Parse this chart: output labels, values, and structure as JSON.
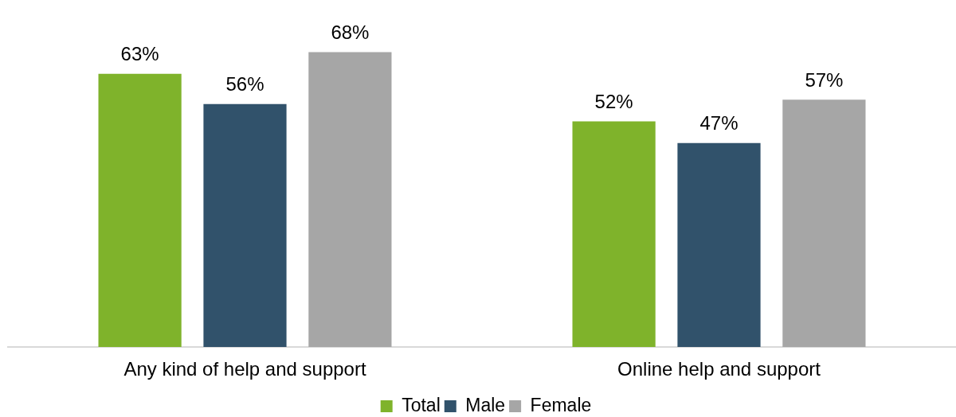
{
  "chart_data": {
    "type": "bar",
    "categories": [
      "Any kind of help and support",
      "Online help and support"
    ],
    "series": [
      {
        "name": "Total",
        "color": "#7fb32b",
        "values": [
          63,
          52
        ],
        "value_labels": [
          "63%",
          "52%"
        ]
      },
      {
        "name": "Male",
        "color": "#31526b",
        "values": [
          56,
          47
        ],
        "value_labels": [
          "56%",
          "47%"
        ]
      },
      {
        "name": "Female",
        "color": "#a6a6a6",
        "values": [
          68,
          57
        ],
        "value_labels": [
          "68%",
          "57%"
        ]
      }
    ],
    "legend": "bottom",
    "tick_labels": "x"
  }
}
